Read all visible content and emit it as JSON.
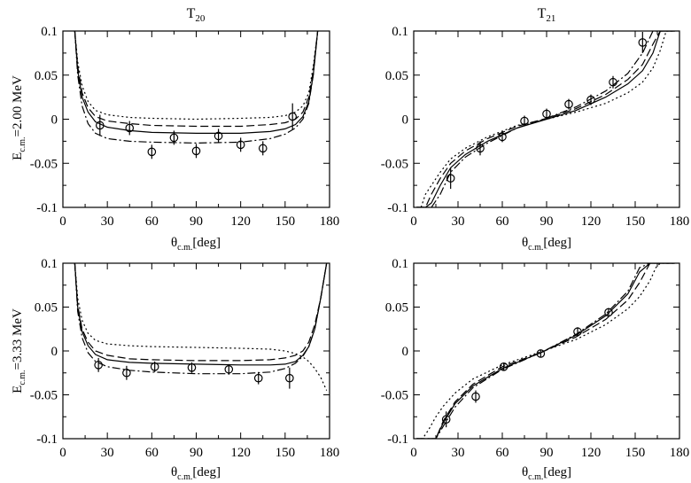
{
  "chart_data": [
    {
      "type": "line",
      "title_main": "T",
      "title_sub": "20",
      "row_label": "=2.00 MeV",
      "xlabel": "[deg]",
      "xlim": [
        0,
        180
      ],
      "ylim": [
        -0.1,
        0.1
      ],
      "xticks": [
        0,
        30,
        60,
        90,
        120,
        150,
        180
      ],
      "yticks": [
        -0.1,
        -0.05,
        0,
        0.05,
        0.1
      ],
      "series": [
        {
          "name": "solid",
          "x": [
            8,
            10,
            13,
            17,
            22,
            30,
            45,
            60,
            90,
            120,
            140,
            150,
            157,
            162,
            166,
            169,
            172
          ],
          "y": [
            0.1,
            0.055,
            0.025,
            0.008,
            -0.003,
            -0.009,
            -0.013,
            -0.015,
            -0.016,
            -0.016,
            -0.014,
            -0.011,
            -0.006,
            0.003,
            0.02,
            0.05,
            0.1
          ]
        },
        {
          "name": "dashed",
          "x": [
            8,
            10,
            13,
            17,
            22,
            30,
            45,
            60,
            90,
            120,
            140,
            150,
            157,
            162,
            166,
            169,
            172
          ],
          "y": [
            0.1,
            0.06,
            0.03,
            0.013,
            0.003,
            -0.002,
            -0.005,
            -0.007,
            -0.008,
            -0.008,
            -0.006,
            -0.004,
            0.0,
            0.008,
            0.025,
            0.055,
            0.1
          ]
        },
        {
          "name": "dash-dot",
          "x": [
            8,
            10,
            13,
            17,
            22,
            30,
            45,
            60,
            90,
            120,
            140,
            150,
            157,
            162,
            166,
            169,
            172
          ],
          "y": [
            0.1,
            0.05,
            0.015,
            -0.005,
            -0.016,
            -0.022,
            -0.025,
            -0.026,
            -0.027,
            -0.026,
            -0.022,
            -0.017,
            -0.01,
            0.0,
            0.018,
            0.05,
            0.1
          ]
        },
        {
          "name": "dotted",
          "x": [
            8,
            10,
            13,
            17,
            22,
            30,
            45,
            60,
            90,
            120,
            140,
            150,
            157,
            162,
            166,
            169,
            172
          ],
          "y": [
            0.1,
            0.065,
            0.038,
            0.02,
            0.01,
            0.005,
            0.002,
            0.001,
            0.0,
            0.001,
            0.002,
            0.004,
            0.008,
            0.015,
            0.03,
            0.06,
            0.1
          ]
        }
      ],
      "points": [
        {
          "x": 25,
          "y": -0.007,
          "err": 0.012
        },
        {
          "x": 45,
          "y": -0.01,
          "err": 0.008
        },
        {
          "x": 60,
          "y": -0.037,
          "err": 0.008
        },
        {
          "x": 75,
          "y": -0.021,
          "err": 0.008
        },
        {
          "x": 90,
          "y": -0.036,
          "err": 0.008
        },
        {
          "x": 105,
          "y": -0.019,
          "err": 0.008
        },
        {
          "x": 120,
          "y": -0.029,
          "err": 0.008
        },
        {
          "x": 135,
          "y": -0.033,
          "err": 0.008
        },
        {
          "x": 155,
          "y": 0.003,
          "err": 0.015
        }
      ]
    },
    {
      "type": "line",
      "title_main": "T",
      "title_sub": "21",
      "row_label": "",
      "xlabel": "[deg]",
      "xlim": [
        0,
        180
      ],
      "ylim": [
        -0.1,
        0.1
      ],
      "xticks": [
        0,
        30,
        60,
        90,
        120,
        150,
        180
      ],
      "yticks": [
        -0.1,
        -0.05,
        0,
        0.05,
        0.1
      ],
      "series": [
        {
          "name": "solid",
          "x": [
            2,
            5,
            8,
            12,
            18,
            25,
            35,
            50,
            70,
            90,
            110,
            130,
            145,
            155,
            162,
            167,
            171,
            174,
            177
          ],
          "y": [
            -0.1,
            -0.1,
            -0.1,
            -0.095,
            -0.075,
            -0.055,
            -0.04,
            -0.025,
            -0.01,
            0.0,
            0.01,
            0.025,
            0.04,
            0.055,
            0.075,
            0.1,
            0.1,
            0.1,
            0.1
          ]
        },
        {
          "name": "dashed",
          "x": [
            2,
            5,
            8,
            12,
            18,
            25,
            35,
            50,
            70,
            90,
            110,
            130,
            145,
            155,
            162,
            167,
            171,
            174,
            177
          ],
          "y": [
            -0.1,
            -0.1,
            -0.1,
            -0.085,
            -0.067,
            -0.05,
            -0.036,
            -0.022,
            -0.008,
            0.001,
            0.012,
            0.028,
            0.045,
            0.062,
            0.085,
            0.1,
            0.1,
            0.1,
            0.1
          ]
        },
        {
          "name": "dash-dot",
          "x": [
            2,
            5,
            8,
            12,
            18,
            25,
            35,
            50,
            70,
            90,
            110,
            130,
            145,
            155,
            162,
            167,
            171,
            174,
            177
          ],
          "y": [
            -0.1,
            -0.1,
            -0.1,
            -0.1,
            -0.085,
            -0.06,
            -0.043,
            -0.027,
            -0.01,
            0.001,
            0.014,
            0.032,
            0.052,
            0.075,
            0.1,
            0.1,
            0.1,
            0.1,
            0.1
          ]
        },
        {
          "name": "dotted",
          "x": [
            2,
            5,
            8,
            12,
            18,
            25,
            35,
            50,
            70,
            90,
            110,
            130,
            145,
            155,
            162,
            167,
            171,
            174,
            177
          ],
          "y": [
            -0.1,
            -0.1,
            -0.085,
            -0.075,
            -0.06,
            -0.045,
            -0.033,
            -0.02,
            -0.007,
            0.0,
            0.008,
            0.018,
            0.03,
            0.042,
            0.058,
            0.078,
            0.1,
            0.1,
            0.1
          ]
        }
      ],
      "points": [
        {
          "x": 25,
          "y": -0.067,
          "err": 0.012
        },
        {
          "x": 45,
          "y": -0.033,
          "err": 0.008
        },
        {
          "x": 60,
          "y": -0.02,
          "err": 0.006
        },
        {
          "x": 75,
          "y": -0.002,
          "err": 0.006
        },
        {
          "x": 90,
          "y": 0.006,
          "err": 0.006
        },
        {
          "x": 105,
          "y": 0.017,
          "err": 0.006
        },
        {
          "x": 120,
          "y": 0.022,
          "err": 0.006
        },
        {
          "x": 135,
          "y": 0.042,
          "err": 0.007
        },
        {
          "x": 155,
          "y": 0.087,
          "err": 0.012
        }
      ]
    },
    {
      "type": "line",
      "title_main": "",
      "title_sub": "",
      "row_label": "=3.33 MeV",
      "xlabel": "[deg]",
      "xlim": [
        0,
        180
      ],
      "ylim": [
        -0.1,
        0.1
      ],
      "xticks": [
        0,
        30,
        60,
        90,
        120,
        150,
        180
      ],
      "yticks": [
        -0.1,
        -0.05,
        0,
        0.05,
        0.1
      ],
      "series": [
        {
          "name": "solid",
          "x": [
            8,
            10,
            13,
            17,
            22,
            30,
            45,
            60,
            90,
            120,
            140,
            150,
            157,
            162,
            166,
            170,
            174,
            178
          ],
          "y": [
            0.1,
            0.05,
            0.022,
            0.006,
            -0.004,
            -0.01,
            -0.013,
            -0.014,
            -0.015,
            -0.016,
            -0.016,
            -0.015,
            -0.012,
            -0.005,
            0.005,
            0.025,
            0.06,
            0.1
          ]
        },
        {
          "name": "dashed",
          "x": [
            8,
            10,
            13,
            17,
            22,
            30,
            45,
            60,
            90,
            120,
            140,
            150,
            157,
            162,
            166,
            170,
            174,
            178
          ],
          "y": [
            0.1,
            0.052,
            0.025,
            0.01,
            0.0,
            -0.005,
            -0.009,
            -0.01,
            -0.011,
            -0.011,
            -0.01,
            -0.008,
            -0.005,
            0.0,
            0.01,
            0.03,
            0.06,
            0.1
          ]
        },
        {
          "name": "dash-dot",
          "x": [
            8,
            10,
            13,
            17,
            22,
            30,
            45,
            60,
            90,
            120,
            140,
            150,
            157,
            162,
            166,
            170,
            174,
            178
          ],
          "y": [
            0.1,
            0.045,
            0.015,
            -0.002,
            -0.012,
            -0.018,
            -0.022,
            -0.024,
            -0.026,
            -0.026,
            -0.024,
            -0.02,
            -0.014,
            -0.006,
            0.005,
            0.025,
            0.06,
            0.1
          ]
        },
        {
          "name": "dotted",
          "x": [
            8,
            10,
            13,
            17,
            22,
            30,
            45,
            60,
            90,
            120,
            140,
            150,
            157,
            162,
            166,
            170,
            174,
            178
          ],
          "y": [
            0.1,
            0.06,
            0.035,
            0.02,
            0.012,
            0.008,
            0.006,
            0.005,
            0.004,
            0.003,
            0.002,
            0.0,
            -0.003,
            -0.007,
            -0.012,
            -0.02,
            -0.03,
            -0.045
          ]
        }
      ],
      "points": [
        {
          "x": 24,
          "y": -0.016,
          "err": 0.008
        },
        {
          "x": 43,
          "y": -0.025,
          "err": 0.008
        },
        {
          "x": 62,
          "y": -0.018,
          "err": 0.006
        },
        {
          "x": 87,
          "y": -0.019,
          "err": 0.006
        },
        {
          "x": 112,
          "y": -0.021,
          "err": 0.006
        },
        {
          "x": 132,
          "y": -0.031,
          "err": 0.007
        },
        {
          "x": 153,
          "y": -0.031,
          "err": 0.012
        }
      ]
    },
    {
      "type": "line",
      "title_main": "",
      "title_sub": "",
      "row_label": "",
      "xlabel": "[deg]",
      "xlim": [
        0,
        180
      ],
      "ylim": [
        -0.1,
        0.1
      ],
      "xticks": [
        0,
        30,
        60,
        90,
        120,
        150,
        180
      ],
      "yticks": [
        -0.1,
        -0.05,
        0,
        0.05,
        0.1
      ],
      "series": [
        {
          "name": "solid",
          "x": [
            2,
            6,
            10,
            15,
            20,
            28,
            40,
            60,
            86,
            110,
            130,
            145,
            153,
            160,
            164,
            167,
            172,
            177
          ],
          "y": [
            -0.1,
            -0.1,
            -0.1,
            -0.1,
            -0.082,
            -0.06,
            -0.04,
            -0.02,
            -0.002,
            0.018,
            0.04,
            0.065,
            0.09,
            0.1,
            0.1,
            0.1,
            0.1,
            0.1
          ]
        },
        {
          "name": "dashed",
          "x": [
            2,
            6,
            10,
            15,
            20,
            28,
            40,
            60,
            86,
            110,
            130,
            145,
            153,
            160,
            164,
            167,
            172,
            177
          ],
          "y": [
            -0.1,
            -0.1,
            -0.1,
            -0.1,
            -0.08,
            -0.058,
            -0.038,
            -0.018,
            -0.002,
            0.016,
            0.036,
            0.058,
            0.078,
            0.1,
            0.1,
            0.1,
            0.1,
            0.1
          ]
        },
        {
          "name": "dash-dot",
          "x": [
            2,
            6,
            10,
            15,
            20,
            28,
            40,
            60,
            86,
            110,
            130,
            145,
            153,
            160,
            164,
            167,
            172,
            177
          ],
          "y": [
            -0.1,
            -0.1,
            -0.1,
            -0.1,
            -0.086,
            -0.064,
            -0.042,
            -0.021,
            -0.002,
            0.019,
            0.042,
            0.068,
            0.095,
            0.1,
            0.1,
            0.1,
            0.1,
            0.1
          ]
        },
        {
          "name": "dotted",
          "x": [
            2,
            6,
            10,
            15,
            20,
            28,
            40,
            60,
            86,
            110,
            130,
            145,
            153,
            160,
            164,
            167,
            172,
            177
          ],
          "y": [
            -0.1,
            -0.1,
            -0.09,
            -0.075,
            -0.063,
            -0.048,
            -0.032,
            -0.016,
            -0.001,
            0.013,
            0.03,
            0.048,
            0.062,
            0.08,
            0.095,
            0.1,
            0.1,
            0.1
          ]
        }
      ],
      "points": [
        {
          "x": 22,
          "y": -0.078,
          "err": 0.009
        },
        {
          "x": 42,
          "y": -0.052,
          "err": 0.007
        },
        {
          "x": 61,
          "y": -0.018,
          "err": 0.004
        },
        {
          "x": 86,
          "y": -0.003,
          "err": 0.004
        },
        {
          "x": 111,
          "y": 0.022,
          "err": 0.005
        },
        {
          "x": 132,
          "y": 0.044,
          "err": 0.005
        }
      ]
    }
  ]
}
